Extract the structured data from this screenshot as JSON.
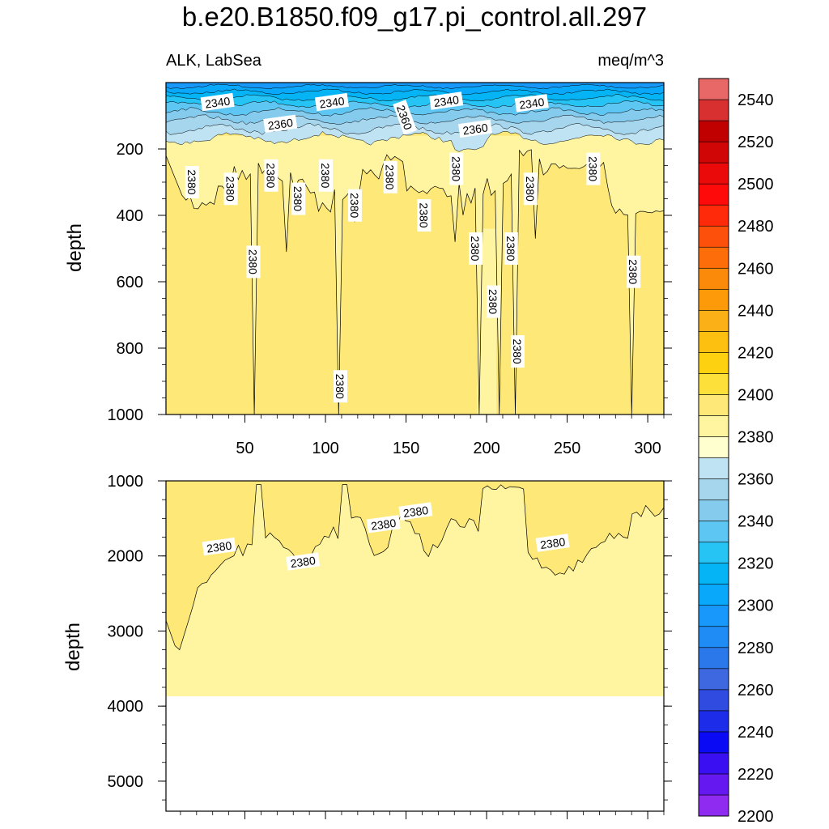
{
  "chart_data": {
    "type": "heatmap",
    "title": "b.e20.B1850.f09_g17.pi_control.all.297",
    "subtitle_left": "ALK, LabSea",
    "subtitle_right": "meq/m^3",
    "panels": [
      {
        "name": "upper",
        "ylabel": "depth",
        "xlim": [
          1,
          310
        ],
        "ylim": [
          1000,
          0
        ],
        "yticks": [
          200,
          400,
          600,
          800,
          1000
        ],
        "xticks": [
          50,
          100,
          150,
          200,
          250,
          300
        ],
        "contour_labels": [
          {
            "value": "2340",
            "x": 33,
            "y": 60
          },
          {
            "value": "2340",
            "x": 104,
            "y": 60
          },
          {
            "value": "2340",
            "x": 175,
            "y": 56
          },
          {
            "value": "2340",
            "x": 228,
            "y": 63
          },
          {
            "value": "2360",
            "x": 72,
            "y": 125
          },
          {
            "value": "2360",
            "x": 149,
            "y": 105
          },
          {
            "value": "2360",
            "x": 193,
            "y": 140
          },
          {
            "value": "2380",
            "x": 17,
            "y": 300
          },
          {
            "value": "2380",
            "x": 41,
            "y": 320
          },
          {
            "value": "2380",
            "x": 66,
            "y": 280
          },
          {
            "value": "2380",
            "x": 83,
            "y": 350
          },
          {
            "value": "2380",
            "x": 100,
            "y": 280
          },
          {
            "value": "2380",
            "x": 118,
            "y": 370
          },
          {
            "value": "2380",
            "x": 140,
            "y": 285
          },
          {
            "value": "2380",
            "x": 161,
            "y": 400
          },
          {
            "value": "2380",
            "x": 181,
            "y": 260
          },
          {
            "value": "2380",
            "x": 227,
            "y": 320
          },
          {
            "value": "2380",
            "x": 266,
            "y": 260
          },
          {
            "value": "2380",
            "x": 55,
            "y": 540
          },
          {
            "value": "2380",
            "x": 193,
            "y": 500
          },
          {
            "value": "2380",
            "x": 215,
            "y": 500
          },
          {
            "value": "2380",
            "x": 291,
            "y": 570
          },
          {
            "value": "2380",
            "x": 204,
            "y": 660
          },
          {
            "value": "2380",
            "x": 219,
            "y": 810
          },
          {
            "value": "2380",
            "x": 109,
            "y": 915
          }
        ]
      },
      {
        "name": "lower",
        "ylabel": "depth",
        "xlim": [
          1,
          310
        ],
        "ylim": [
          5400,
          1000
        ],
        "yticks": [
          1000,
          2000,
          3000,
          4000,
          5000
        ],
        "xticks": [
          50,
          100,
          150,
          200,
          250,
          300
        ],
        "seafloor_depth": 3870,
        "contour_labels": [
          {
            "value": "2380",
            "x": 34,
            "y": 1880
          },
          {
            "value": "2380",
            "x": 86,
            "y": 2080
          },
          {
            "value": "2380",
            "x": 136,
            "y": 1580
          },
          {
            "value": "2380",
            "x": 156,
            "y": 1410
          },
          {
            "value": "2380",
            "x": 241,
            "y": 1830
          }
        ]
      }
    ],
    "colorbar": {
      "levels": [
        2200,
        2210,
        2220,
        2230,
        2240,
        2250,
        2260,
        2270,
        2280,
        2290,
        2300,
        2310,
        2320,
        2330,
        2340,
        2350,
        2360,
        2370,
        2380,
        2390,
        2400,
        2410,
        2420,
        2430,
        2440,
        2450,
        2460,
        2470,
        2480,
        2490,
        2500,
        2510,
        2520,
        2530,
        2540,
        2550
      ],
      "labels": [
        "2200",
        "2220",
        "2240",
        "2260",
        "2280",
        "2300",
        "2320",
        "2340",
        "2360",
        "2380",
        "2400",
        "2420",
        "2440",
        "2460",
        "2480",
        "2500",
        "2520",
        "2540"
      ],
      "colors": [
        "#8f2af0",
        "#6519f0",
        "#3a0ff2",
        "#0a0af5",
        "#1c2ce8",
        "#2f4be0",
        "#3d68df",
        "#2a78ea",
        "#1f8cf5",
        "#1898fa",
        "#0aa8fa",
        "#05b4f5",
        "#25c4f5",
        "#5ec6f2",
        "#85cbee",
        "#a6d6ee",
        "#bfe3f3",
        "#ffffd0",
        "#fff5a0",
        "#fde878",
        "#fee03a",
        "#fdd010",
        "#fdbf10",
        "#fcb018",
        "#fc9a0a",
        "#fc8a0a",
        "#fd6e0a",
        "#fd500a",
        "#fe2a0a",
        "#ff0a0a",
        "#ea0a0a",
        "#d00505",
        "#c00000",
        "#d83030",
        "#e86868",
        "#f8b0b0"
      ]
    }
  }
}
